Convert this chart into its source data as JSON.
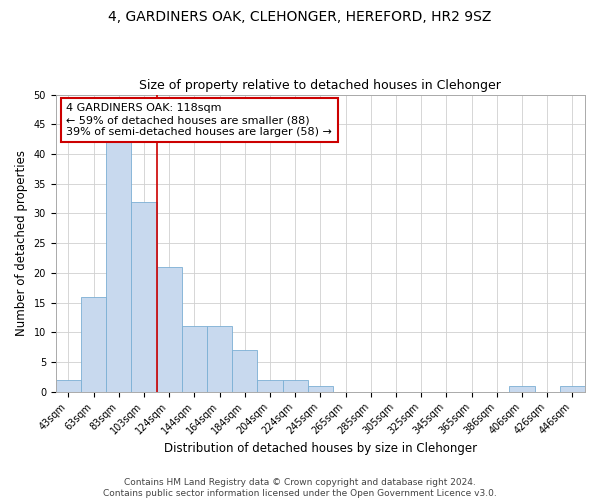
{
  "title": "4, GARDINERS OAK, CLEHONGER, HEREFORD, HR2 9SZ",
  "subtitle": "Size of property relative to detached houses in Clehonger",
  "xlabel": "Distribution of detached houses by size in Clehonger",
  "ylabel": "Number of detached properties",
  "bin_labels": [
    "43sqm",
    "63sqm",
    "83sqm",
    "103sqm",
    "124sqm",
    "144sqm",
    "164sqm",
    "184sqm",
    "204sqm",
    "224sqm",
    "245sqm",
    "265sqm",
    "285sqm",
    "305sqm",
    "325sqm",
    "345sqm",
    "365sqm",
    "386sqm",
    "406sqm",
    "426sqm",
    "446sqm"
  ],
  "bar_values": [
    2,
    16,
    42,
    32,
    21,
    11,
    11,
    7,
    2,
    2,
    1,
    0,
    0,
    0,
    0,
    0,
    0,
    0,
    1,
    0,
    1
  ],
  "bar_color": "#c8d9ee",
  "bar_edge_color": "#7bafd4",
  "highlight_line_color": "#cc0000",
  "highlight_bar_index": 3,
  "ylim": [
    0,
    50
  ],
  "yticks": [
    0,
    5,
    10,
    15,
    20,
    25,
    30,
    35,
    40,
    45,
    50
  ],
  "annotation_title": "4 GARDINERS OAK: 118sqm",
  "annotation_line1": "← 59% of detached houses are smaller (88)",
  "annotation_line2": "39% of semi-detached houses are larger (58) →",
  "footer_line1": "Contains HM Land Registry data © Crown copyright and database right 2024.",
  "footer_line2": "Contains public sector information licensed under the Open Government Licence v3.0.",
  "background_color": "#ffffff",
  "grid_color": "#d0d0d0",
  "title_fontsize": 10,
  "subtitle_fontsize": 9,
  "axis_label_fontsize": 8.5,
  "tick_fontsize": 7,
  "annotation_fontsize": 8,
  "footer_fontsize": 6.5
}
